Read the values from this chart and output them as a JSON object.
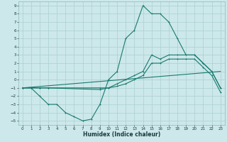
{
  "xlabel": "Humidex (Indice chaleur)",
  "xlim": [
    -0.5,
    23.5
  ],
  "ylim": [
    -5.5,
    9.5
  ],
  "xticks": [
    0,
    1,
    2,
    3,
    4,
    5,
    6,
    7,
    8,
    9,
    10,
    11,
    12,
    13,
    14,
    15,
    16,
    17,
    18,
    19,
    20,
    21,
    22,
    23
  ],
  "yticks": [
    -5,
    -4,
    -3,
    -2,
    -1,
    0,
    1,
    2,
    3,
    4,
    5,
    6,
    7,
    8,
    9
  ],
  "bg_color": "#cce8ea",
  "grid_color": "#aacfcf",
  "line_color": "#1a7a6e",
  "line1_x": [
    0,
    1,
    2,
    3,
    4,
    5,
    6,
    7,
    8,
    9,
    10,
    11,
    12,
    13,
    14,
    15,
    16,
    17,
    18,
    19,
    20,
    21,
    22,
    23
  ],
  "line1_y": [
    -1,
    -1,
    -2,
    -3,
    -3,
    -4,
    -4.5,
    -5,
    -4.8,
    -3,
    0,
    1,
    5,
    6,
    9,
    8,
    8,
    7,
    5,
    3,
    3,
    2,
    1,
    -1
  ],
  "line2_x": [
    0,
    1,
    2,
    3,
    9,
    10,
    11,
    12,
    13,
    14,
    15,
    16,
    17,
    18,
    19,
    20,
    21,
    22,
    23
  ],
  "line2_y": [
    -1,
    -1,
    -1,
    -1,
    -1,
    -1,
    -0.5,
    0,
    0.5,
    1,
    3,
    2.5,
    3,
    3,
    3,
    3,
    2,
    1,
    -1
  ],
  "line3_x": [
    0,
    1,
    2,
    3,
    9,
    10,
    11,
    12,
    13,
    14,
    15,
    16,
    17,
    18,
    19,
    20,
    21,
    22,
    23
  ],
  "line3_y": [
    -1,
    -1,
    -1,
    -1,
    -1.2,
    -1,
    -0.8,
    -0.5,
    0,
    0.5,
    2,
    2,
    2.5,
    2.5,
    2.5,
    2.5,
    1.5,
    0.5,
    -1.5
  ],
  "line4_x": [
    0,
    23
  ],
  "line4_y": [
    -1,
    1
  ]
}
